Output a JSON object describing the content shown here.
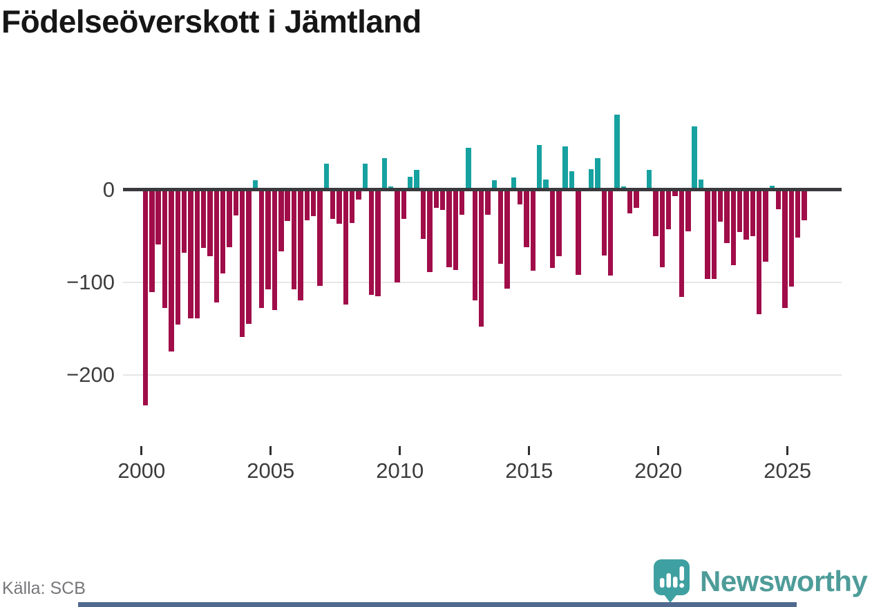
{
  "title": "Födelseöverskott i Jämtland",
  "source": "Källa: SCB",
  "branding": {
    "name": "Newsworthy"
  },
  "chart_data": {
    "type": "bar",
    "title": "Födelseöverskott i Jämtland",
    "frequency": "quarterly",
    "start_period": "2000-Q1",
    "end_period": "2025-Q3",
    "x_tick_labels": [
      "2000",
      "2005",
      "2010",
      "2015",
      "2020",
      "2025"
    ],
    "y_ticks": [
      0,
      -100,
      -200
    ],
    "ylim": [
      -245,
      95
    ],
    "grid": "horizontal",
    "legend": "none",
    "colors": {
      "positive": "#16a2a0",
      "negative": "#a00d49"
    },
    "series": [
      {
        "name": "Födelseöverskott",
        "values": [
          -233,
          -111,
          -59,
          -128,
          -175,
          -146,
          -68,
          -139,
          -139,
          -63,
          -72,
          -122,
          -91,
          -62,
          -28,
          -159,
          -145,
          10,
          -128,
          -108,
          -130,
          -67,
          -34,
          -108,
          -120,
          -33,
          -29,
          -104,
          28,
          -32,
          -37,
          -124,
          -36,
          -11,
          28,
          -114,
          -115,
          34,
          3,
          -100,
          -32,
          14,
          21,
          -53,
          -89,
          -20,
          -22,
          -84,
          -87,
          -27,
          45,
          -120,
          -148,
          -27,
          10,
          -80,
          -107,
          13,
          -16,
          -62,
          -88,
          48,
          11,
          -85,
          -72,
          47,
          20,
          -92,
          0,
          22,
          34,
          -71,
          -93,
          81,
          3,
          -26,
          -20,
          0,
          21,
          -50,
          -84,
          -43,
          -7,
          -116,
          -45,
          68,
          11,
          -97,
          -97,
          -35,
          -58,
          -82,
          -46,
          -54,
          -50,
          -135,
          -78,
          4,
          -21,
          -128,
          -105,
          -52,
          -33
        ]
      }
    ]
  }
}
